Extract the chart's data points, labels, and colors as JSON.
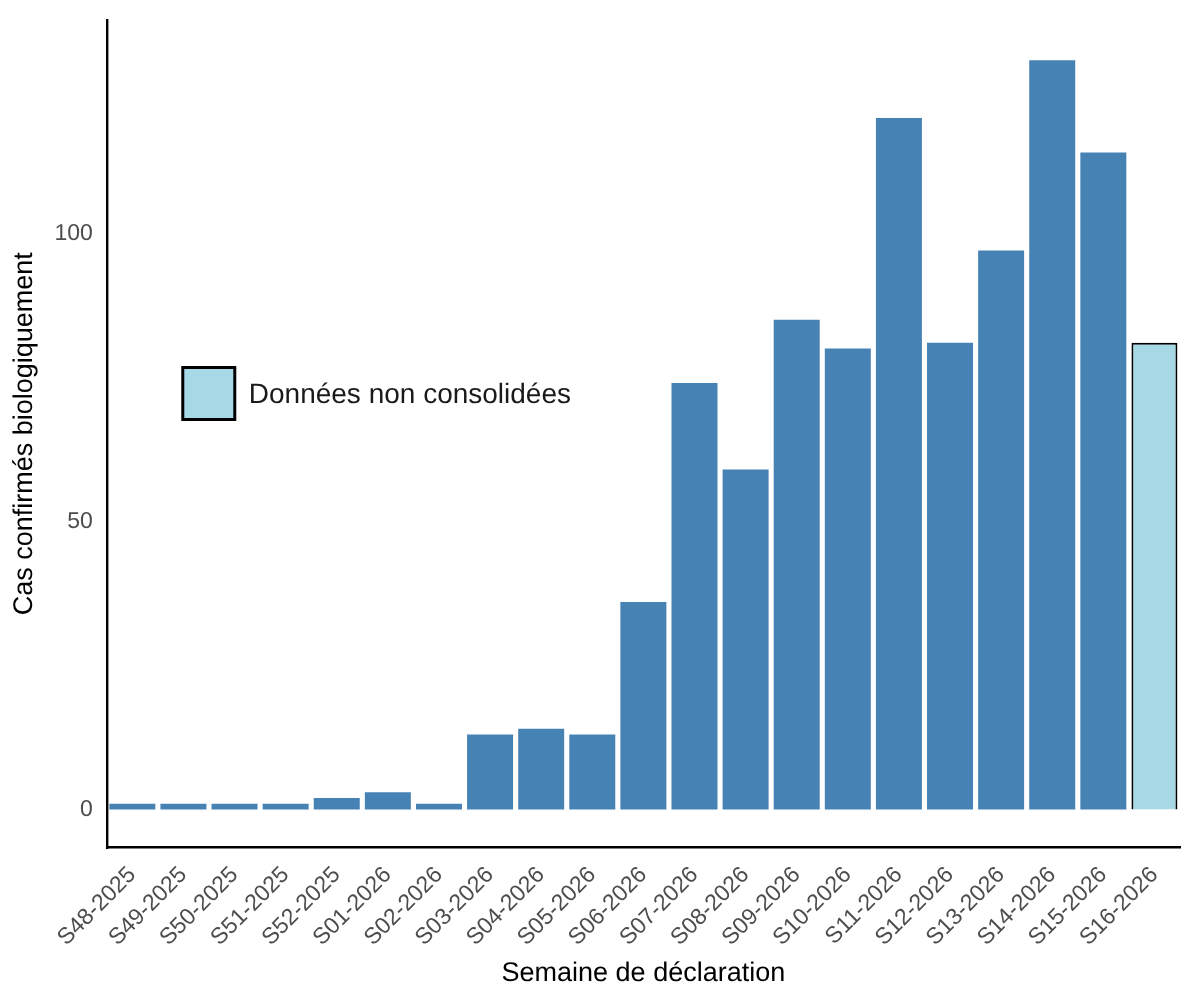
{
  "chart_data": {
    "type": "bar",
    "xlabel": "Semaine de déclaration",
    "ylabel": "Cas confirmés biologiquement",
    "categories": [
      "S48-2025",
      "S49-2025",
      "S50-2025",
      "S51-2025",
      "S52-2025",
      "S01-2026",
      "S02-2026",
      "S03-2026",
      "S04-2026",
      "S05-2026",
      "S06-2026",
      "S07-2026",
      "S08-2026",
      "S09-2026",
      "S10-2026",
      "S11-2026",
      "S12-2026",
      "S13-2026",
      "S14-2026",
      "S15-2026",
      "S16-2026"
    ],
    "series": [
      {
        "color": "#4682b4",
        "values": [
          1,
          1,
          1,
          1,
          2,
          3,
          1,
          13,
          14,
          13,
          36,
          74,
          59,
          85,
          80,
          120,
          81,
          97,
          130,
          114,
          null
        ]
      },
      {
        "name": "Données non consolidées",
        "color": "#a6d8e6",
        "values": [
          null,
          null,
          null,
          null,
          null,
          null,
          null,
          null,
          null,
          null,
          null,
          null,
          null,
          null,
          null,
          null,
          null,
          null,
          null,
          null,
          81
        ]
      }
    ],
    "ylim": [
      -6.6,
      137
    ],
    "yticks": [
      0,
      50,
      100
    ],
    "grid": false,
    "legend": "left"
  }
}
